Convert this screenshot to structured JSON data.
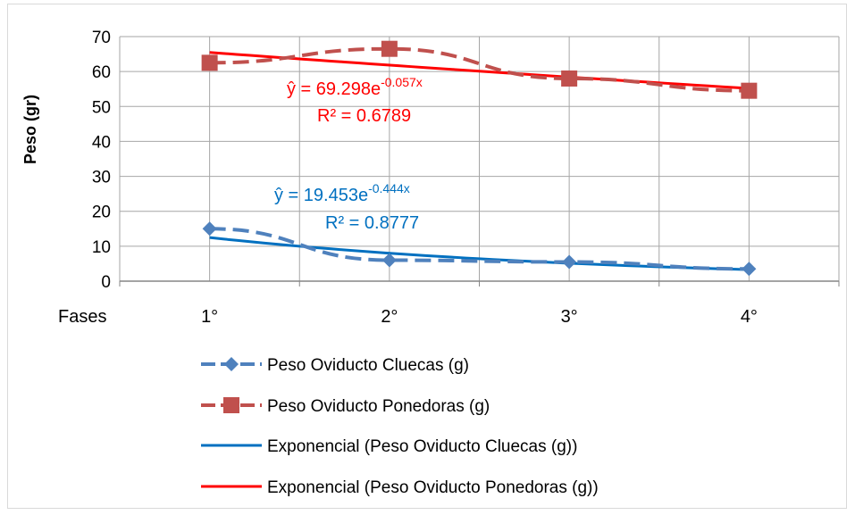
{
  "chart_data": {
    "type": "line",
    "title": "",
    "xlabel": "Fases",
    "ylabel": "Peso (gr)",
    "categories": [
      "1°",
      "2°",
      "3°",
      "4°"
    ],
    "ylim": [
      0,
      70
    ],
    "yticks": [
      0,
      10,
      20,
      30,
      40,
      50,
      60,
      70
    ],
    "grid": true,
    "legend": "bottom",
    "series": [
      {
        "name": "Peso Oviducto Cluecas (g)",
        "values": [
          15,
          6,
          5.5,
          3.5
        ],
        "color": "#4f81bd",
        "marker": "diamond",
        "dash": true
      },
      {
        "name": "Peso Oviducto Ponedoras (g)",
        "values": [
          62.5,
          66.5,
          58,
          54.5
        ],
        "color": "#c0504d",
        "marker": "square",
        "dash": true
      }
    ],
    "trendlines": [
      {
        "name": "Exponencial (Peso Oviducto Cluecas (g))",
        "a": 19.453,
        "b": -0.444,
        "color": "#0070c0",
        "equation_prefix": "ŷ = 19.453e",
        "equation_exponent": "-0.444x",
        "r2": "R² = 0.8777"
      },
      {
        "name": "Exponencial (Peso Oviducto Ponedoras (g))",
        "a": 69.298,
        "b": -0.057,
        "color": "#ff0000",
        "equation_prefix": "ŷ = 69.298e",
        "equation_exponent": "-0.057x",
        "r2": "R² = 0.6789"
      }
    ]
  }
}
